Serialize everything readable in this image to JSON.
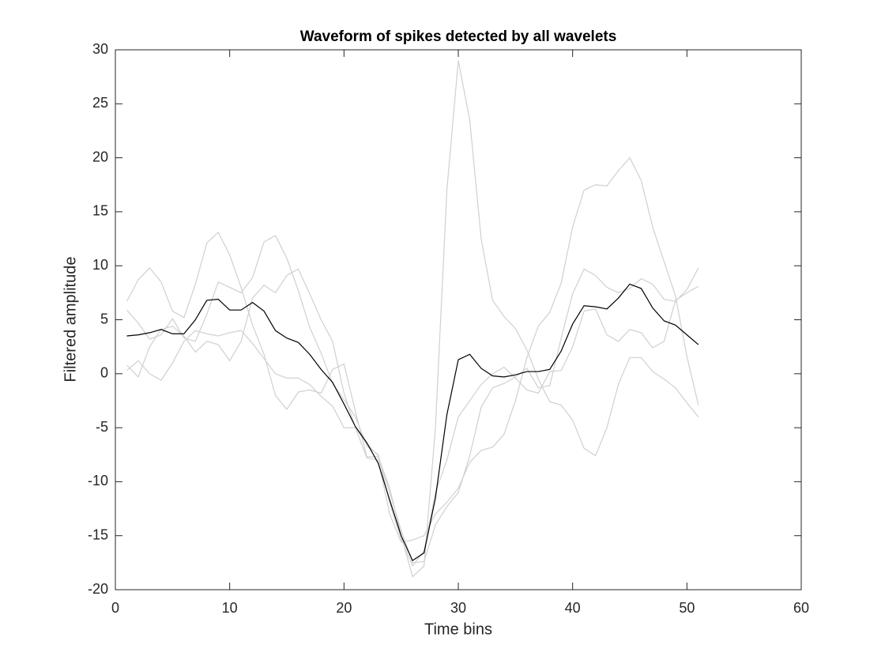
{
  "chart_data": {
    "type": "line",
    "title": "Waveform of spikes detected by all wavelets",
    "xlabel": "Time bins",
    "ylabel": "Filtered amplitude",
    "x": [
      1,
      2,
      3,
      4,
      5,
      6,
      7,
      8,
      9,
      10,
      11,
      12,
      13,
      14,
      15,
      16,
      17,
      18,
      19,
      20,
      21,
      22,
      23,
      24,
      25,
      26,
      27,
      28,
      29,
      30,
      31,
      32,
      33,
      34,
      35,
      36,
      37,
      38,
      39,
      40,
      41,
      42,
      43,
      44,
      45,
      46,
      47,
      48,
      49,
      50,
      51
    ],
    "series": [
      {
        "color": "#d0d0d0",
        "values": [
          6.7,
          8.7,
          9.8,
          8.5,
          5.8,
          5.2,
          8.3,
          12.1,
          13.1,
          11,
          8,
          4.5,
          1.8,
          -2,
          -3.3,
          -1.7,
          -1.5,
          -1.8,
          0.4,
          0.9,
          -3.5,
          -7.7,
          -7.7,
          -10.6,
          -15,
          -18.8,
          -17.8,
          -5,
          17,
          29,
          23.5,
          12.5,
          6.8,
          5.3,
          4.2,
          2.2,
          -0.5,
          -2.6,
          -2.9,
          -4.3,
          -6.9,
          -7.6,
          -5,
          -1,
          1.5,
          1.5,
          0.2,
          -0.5,
          -1.3,
          -2.7,
          -4
        ]
      },
      {
        "color": "#d0d0d0",
        "values": [
          0.3,
          1.2,
          0,
          -0.6,
          1,
          3,
          4,
          3.7,
          3.5,
          3.8,
          4,
          2.8,
          1.4,
          0,
          -0.4,
          -0.4,
          -1,
          -2.1,
          -3,
          -5,
          -5,
          -7.8,
          -8,
          -13,
          -15.6,
          -15.4,
          -15,
          -13,
          -11.9,
          -10.6,
          -8.2,
          -7.1,
          -6.8,
          -5.6,
          -2.5,
          1.5,
          4.4,
          5.7,
          8.4,
          13.6,
          17,
          17.5,
          17.4,
          18.8,
          20,
          17.9,
          13.6,
          10.4,
          7.2,
          1.6,
          -2.9
        ]
      },
      {
        "color": "#d0d0d0",
        "values": [
          5.9,
          4.7,
          3.2,
          3.6,
          5.1,
          3.3,
          3,
          5.5,
          8.5,
          8,
          7.5,
          8.9,
          12.2,
          12.8,
          10.7,
          7.7,
          4.3,
          1.9,
          -0.9,
          -2.4,
          -4,
          -6.7,
          -7.5,
          -12,
          -15.3,
          -17.8,
          -16.4,
          -11,
          -8,
          -4,
          -2.5,
          -1,
          0,
          0.6,
          -0.4,
          -1.5,
          -1.8,
          0.2,
          0.3,
          2.5,
          5.8,
          6,
          3.6,
          3,
          4.1,
          3.8,
          2.4,
          3,
          6.8,
          7.5,
          8.1
        ]
      },
      {
        "color": "#d0d0d0",
        "values": [
          0.8,
          -0.3,
          2.5,
          4.1,
          4.4,
          3.5,
          2,
          3,
          2.7,
          1.2,
          3,
          7,
          8.2,
          7.5,
          9.1,
          9.7,
          7.4,
          5,
          3,
          -1.8,
          -5,
          -6.5,
          -7.6,
          -11,
          -14.5,
          -17.5,
          -17.4,
          -14,
          -12.3,
          -11,
          -7.6,
          -3.1,
          -1.3,
          -0.9,
          -0.3,
          0.5,
          -1.3,
          -1.1,
          3.3,
          7.4,
          9.7,
          9.1,
          8,
          7.5,
          7.9,
          8.8,
          8.3,
          6.9,
          6.7,
          7.8,
          9.8
        ]
      },
      {
        "color": "#000000",
        "values": [
          3.5,
          3.6,
          3.8,
          4.1,
          3.7,
          3.7,
          5,
          6.8,
          6.9,
          5.9,
          5.9,
          6.6,
          5.8,
          4,
          3.3,
          2.9,
          1.8,
          0.4,
          -0.8,
          -2.8,
          -4.9,
          -6.4,
          -8.3,
          -11.7,
          -15,
          -17.3,
          -16.6,
          -11.5,
          -3.8,
          1.3,
          1.8,
          0.5,
          -0.2,
          -0.3,
          -0.1,
          0.2,
          0.2,
          0.4,
          2.1,
          4.6,
          6.3,
          6.2,
          6,
          7,
          8.3,
          7.9,
          6.1,
          4.9,
          4.5,
          3.6,
          2.7
        ]
      }
    ],
    "xlim": [
      0,
      60
    ],
    "xticks": [
      0,
      10,
      20,
      30,
      40,
      50,
      60
    ],
    "ylim": [
      -20,
      30
    ],
    "yticks": [
      -20,
      -15,
      -10,
      -5,
      0,
      5,
      10,
      15,
      20,
      25,
      30
    ],
    "grid": false
  }
}
